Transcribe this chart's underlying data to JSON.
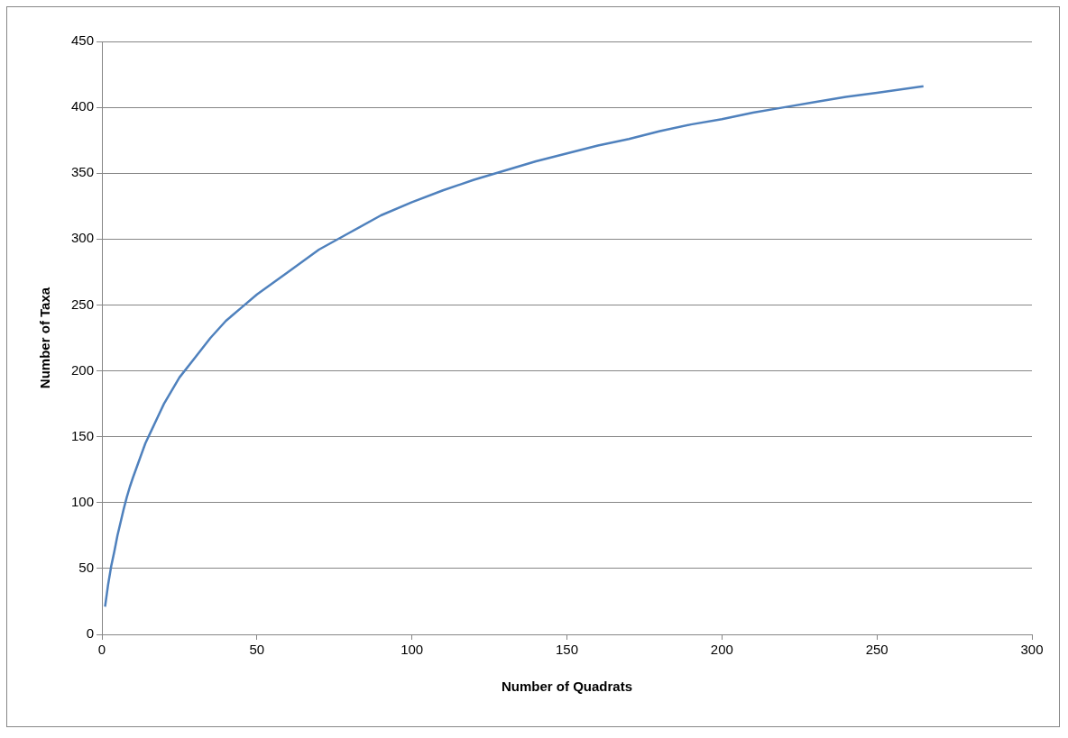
{
  "chart_data": {
    "type": "line",
    "xlabel": "Number of Quadrats",
    "ylabel": "Number of Taxa",
    "x": [
      1,
      2,
      3,
      4,
      5,
      6,
      7,
      8,
      9,
      10,
      12,
      14,
      16,
      18,
      20,
      25,
      30,
      35,
      40,
      45,
      50,
      60,
      70,
      80,
      90,
      100,
      110,
      120,
      130,
      140,
      150,
      160,
      170,
      180,
      190,
      200,
      210,
      220,
      230,
      240,
      250,
      265
    ],
    "series": [
      {
        "color": "#4f81bd",
        "values": [
          21,
          38,
          52,
          63,
          75,
          85,
          95,
          104,
          112,
          119,
          132,
          145,
          155,
          165,
          175,
          195,
          210,
          225,
          238,
          248,
          258,
          275,
          292,
          305,
          318,
          328,
          337,
          345,
          352,
          359,
          365,
          371,
          376,
          382,
          387,
          391,
          396,
          400,
          404,
          408,
          411,
          416
        ]
      }
    ],
    "xlim": [
      0,
      300
    ],
    "xticks": [
      0,
      50,
      100,
      150,
      200,
      250,
      300
    ],
    "ylim": [
      0,
      450
    ],
    "yticks": [
      0,
      50,
      100,
      150,
      200,
      250,
      300,
      350,
      400,
      450
    ],
    "grid": "y",
    "legend": false,
    "marker": "none",
    "line_style": "solid"
  }
}
